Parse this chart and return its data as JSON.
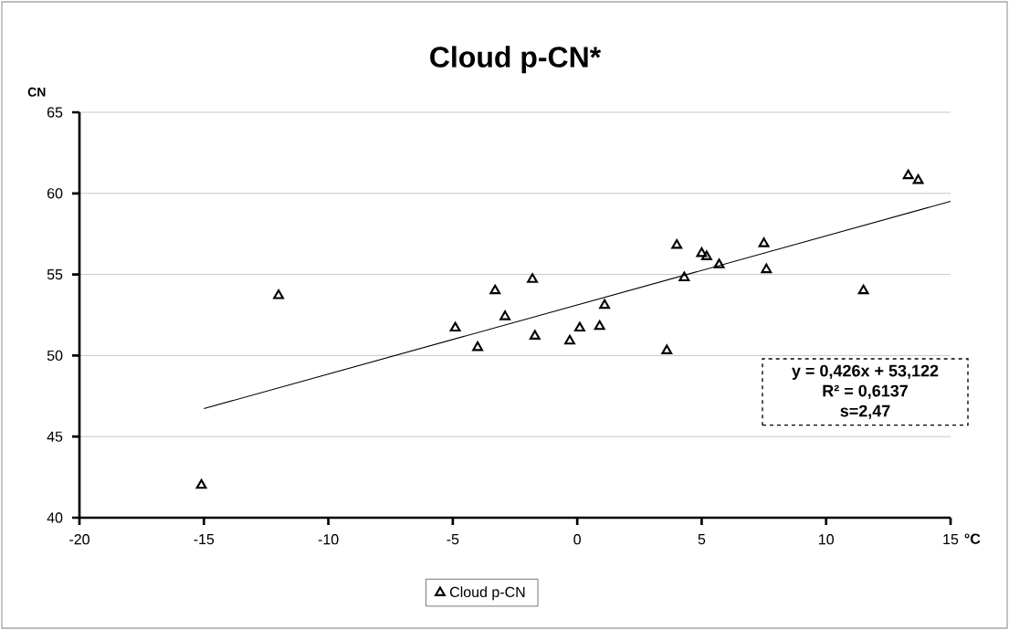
{
  "chart_data": {
    "type": "scatter",
    "title": "Cloud p-CN*",
    "xlabel": "°C",
    "ylabel": "CN",
    "xlim": [
      -20,
      15
    ],
    "xticks": [
      -20,
      -15,
      -10,
      -5,
      0,
      5,
      10,
      15
    ],
    "ylim": [
      40,
      65
    ],
    "yticks": [
      40,
      45,
      50,
      55,
      60,
      65
    ],
    "grid": "y",
    "legend": "bottom",
    "annotations": [
      "y = 0,426x + 53,122",
      "R² = 0,6137",
      "s=2,47"
    ],
    "series": [
      {
        "name": "Cloud p-CN",
        "marker": "triangle",
        "color": "#000000",
        "x": [
          -15.1,
          -12.0,
          -4.9,
          -4.0,
          -3.3,
          -2.9,
          -1.8,
          -1.7,
          -0.3,
          0.1,
          0.9,
          1.1,
          3.6,
          4.0,
          4.3,
          5.0,
          5.2,
          5.7,
          7.5,
          7.6,
          11.5,
          13.3,
          13.7
        ],
        "values": [
          42.0,
          53.7,
          51.7,
          50.5,
          54.0,
          52.4,
          54.7,
          51.2,
          50.9,
          51.7,
          51.8,
          53.1,
          50.3,
          56.8,
          54.8,
          56.3,
          56.1,
          55.6,
          56.9,
          55.3,
          54.0,
          61.1,
          60.8
        ]
      },
      {
        "type": "line",
        "color": "#000000",
        "line_style": "solid",
        "x": [
          -15,
          15
        ],
        "values": [
          46.73,
          59.51
        ]
      }
    ]
  }
}
